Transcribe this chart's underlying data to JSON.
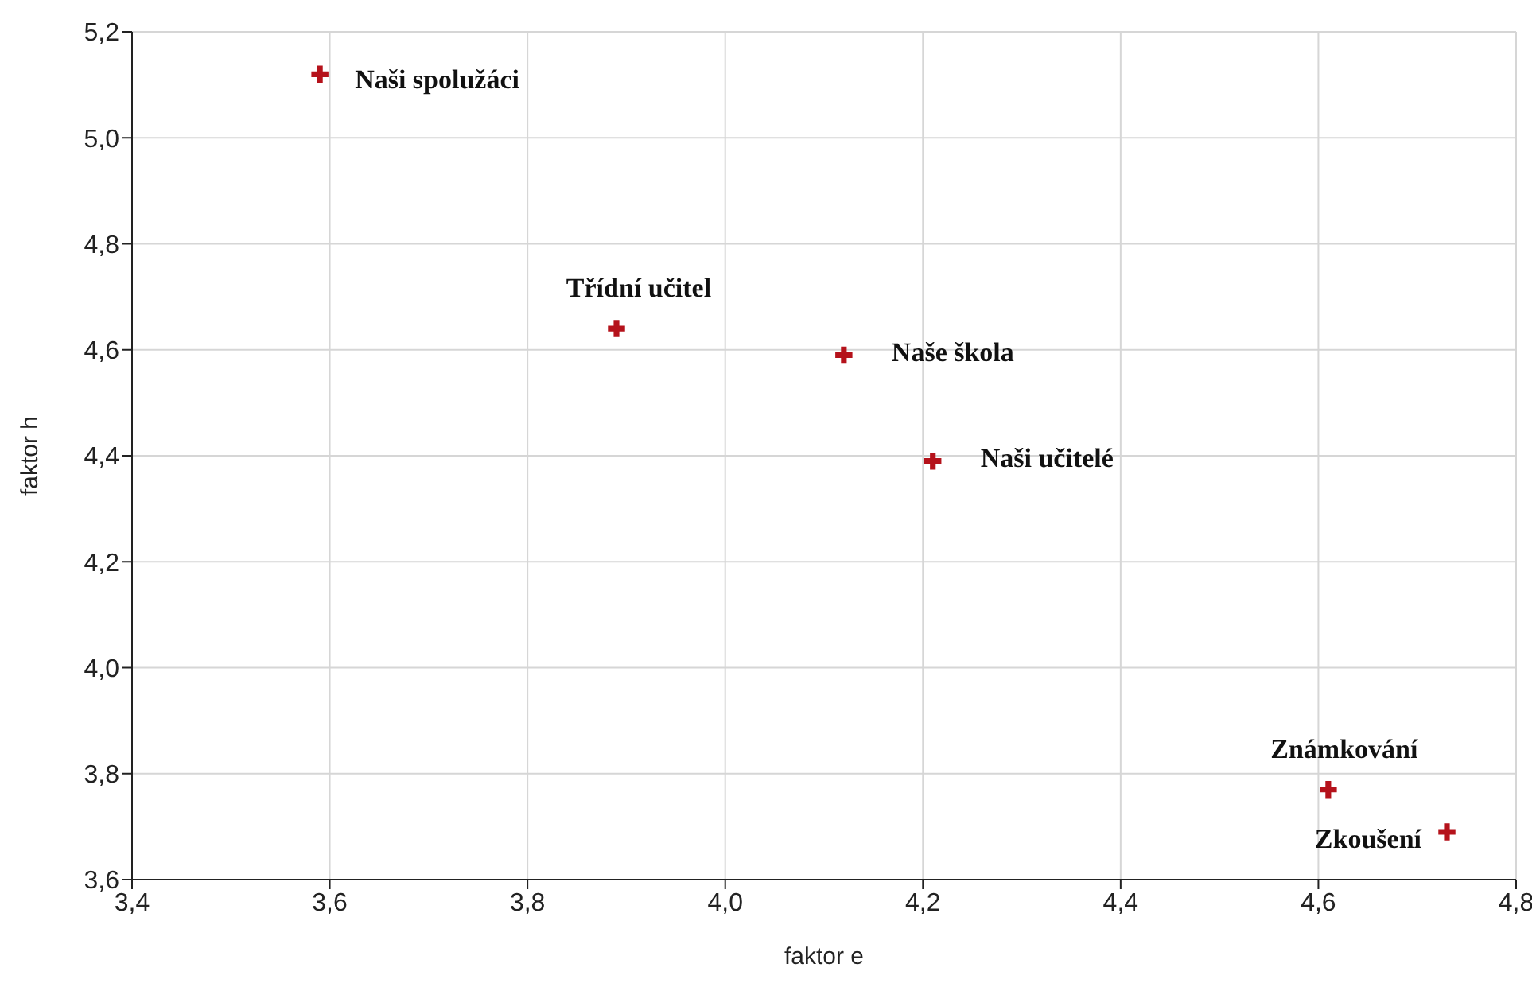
{
  "chart_data": {
    "type": "scatter",
    "xlabel": "faktor e",
    "ylabel": "faktor h",
    "x": [
      3.59,
      3.89,
      4.12,
      4.21,
      4.61,
      4.73
    ],
    "values": [
      5.12,
      4.64,
      4.59,
      4.39,
      3.77,
      3.69
    ],
    "color": "#b5121b",
    "marker": "cross",
    "grid": true,
    "xlim": [
      3.4,
      4.8
    ],
    "xticks": [
      {
        "value": 3.4,
        "label": "3,4"
      },
      {
        "value": 3.6,
        "label": "3,6"
      },
      {
        "value": 3.8,
        "label": "3,8"
      },
      {
        "value": 4.0,
        "label": "4,0"
      },
      {
        "value": 4.2,
        "label": "4,2"
      },
      {
        "value": 4.4,
        "label": "4,4"
      },
      {
        "value": 4.6,
        "label": "4,6"
      },
      {
        "value": 4.8,
        "label": "4,8"
      }
    ],
    "ylim": [
      3.6,
      5.2
    ],
    "yticks": [
      {
        "value": 3.6,
        "label": "3,6"
      },
      {
        "value": 3.8,
        "label": "3,8"
      },
      {
        "value": 4.0,
        "label": "4,0"
      },
      {
        "value": 4.2,
        "label": "4,2"
      },
      {
        "value": 4.4,
        "label": "4,4"
      },
      {
        "value": 4.6,
        "label": "4,6"
      },
      {
        "value": 4.8,
        "label": "4,8"
      },
      {
        "value": 5.0,
        "label": "5,0"
      },
      {
        "value": 5.2,
        "label": "5,2"
      }
    ],
    "annotations": [
      {
        "text": "Naši spolužáci",
        "x": 3.59,
        "y": 5.12
      },
      {
        "text": "Třídní učitel",
        "x": 3.89,
        "y": 4.64
      },
      {
        "text": "Naše škola",
        "x": 4.12,
        "y": 4.59
      },
      {
        "text": "Naši učitelé",
        "x": 4.21,
        "y": 4.39
      },
      {
        "text": "Známkování",
        "x": 4.61,
        "y": 3.77
      },
      {
        "text": "Zkoušení",
        "x": 4.73,
        "y": 3.69
      }
    ]
  }
}
